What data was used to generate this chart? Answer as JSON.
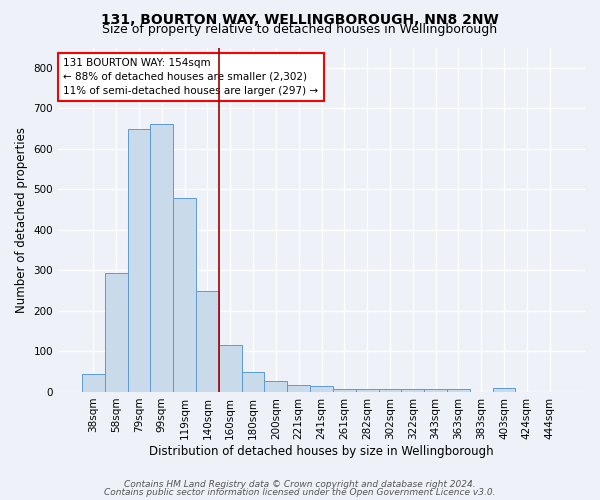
{
  "title": "131, BOURTON WAY, WELLINGBOROUGH, NN8 2NW",
  "subtitle": "Size of property relative to detached houses in Wellingborough",
  "xlabel": "Distribution of detached houses by size in Wellingborough",
  "ylabel": "Number of detached properties",
  "bar_labels": [
    "38sqm",
    "58sqm",
    "79sqm",
    "99sqm",
    "119sqm",
    "140sqm",
    "160sqm",
    "180sqm",
    "200sqm",
    "221sqm",
    "241sqm",
    "261sqm",
    "282sqm",
    "302sqm",
    "322sqm",
    "343sqm",
    "363sqm",
    "383sqm",
    "403sqm",
    "424sqm",
    "444sqm"
  ],
  "bar_heights": [
    45,
    293,
    648,
    660,
    478,
    250,
    115,
    50,
    27,
    17,
    15,
    8,
    7,
    7,
    8,
    8,
    8,
    0,
    10,
    0,
    0
  ],
  "bar_color": "#c9daea",
  "bar_edge_color": "#5b9bd5",
  "vline_x": 5.5,
  "vline_color": "#a00000",
  "annotation_text": "131 BOURTON WAY: 154sqm\n← 88% of detached houses are smaller (2,302)\n11% of semi-detached houses are larger (297) →",
  "ylim": [
    0,
    850
  ],
  "yticks": [
    0,
    100,
    200,
    300,
    400,
    500,
    600,
    700,
    800
  ],
  "footer_line1": "Contains HM Land Registry data © Crown copyright and database right 2024.",
  "footer_line2": "Contains public sector information licensed under the Open Government Licence v3.0.",
  "bg_color": "#eef2f8",
  "grid_color": "#ffffff",
  "title_fontsize": 10,
  "subtitle_fontsize": 9,
  "axis_label_fontsize": 8.5,
  "tick_fontsize": 7.5,
  "annotation_fontsize": 7.5,
  "footer_fontsize": 6.5
}
